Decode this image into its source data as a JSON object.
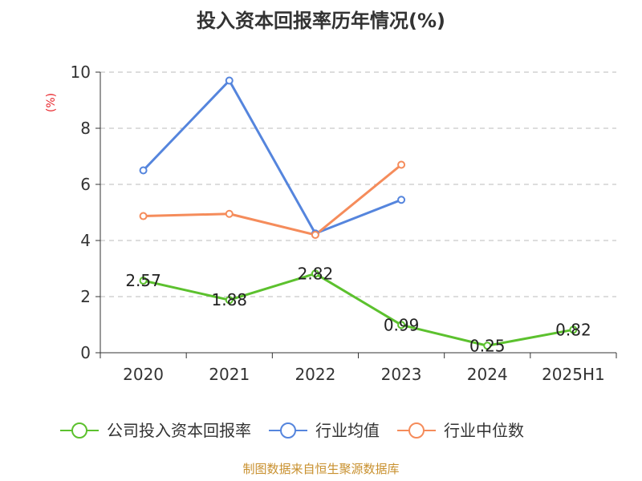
{
  "chart_data": {
    "type": "line",
    "title": "投入资本回报率历年情况(%)",
    "ylabel": "(%)",
    "categories": [
      "2020",
      "2021",
      "2022",
      "2023",
      "2024",
      "2025H1"
    ],
    "y_ticks": [
      "0",
      "2",
      "4",
      "6",
      "8",
      "10"
    ],
    "ylim": [
      0,
      10
    ],
    "grid": true,
    "legend_position": "bottom",
    "series": [
      {
        "name": "公司投入资本回报率",
        "color": "#5cc12e",
        "values": [
          2.57,
          1.88,
          2.82,
          0.99,
          0.25,
          0.82
        ],
        "labels": [
          "2.57",
          "1.88",
          "2.82",
          "0.99",
          "0.25",
          "0.82"
        ]
      },
      {
        "name": "行业均值",
        "color": "#5585dd",
        "values": [
          6.5,
          9.7,
          4.25,
          5.45,
          null,
          null
        ]
      },
      {
        "name": "行业中位数",
        "color": "#f58c5b",
        "values": [
          4.87,
          4.95,
          4.2,
          6.7,
          null,
          null
        ]
      }
    ],
    "ylabel_color": "#e8262c"
  },
  "source": {
    "text": "制图数据来自恒生聚源数据库",
    "color": "#c8902e"
  }
}
